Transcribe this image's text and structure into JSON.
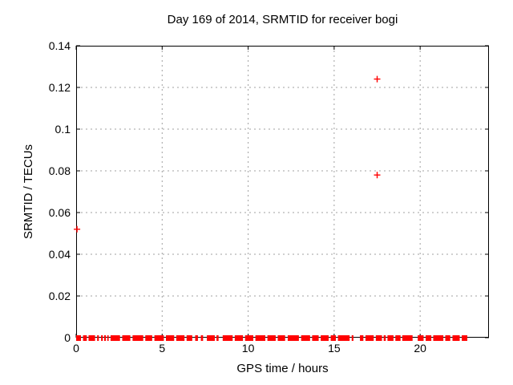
{
  "chart_data": {
    "type": "scatter",
    "title": "Day 169 of 2014, SRMTID for receiver bogi",
    "xlabel": "GPS time / hours",
    "ylabel": "SRMTID / TECUs",
    "xlim": [
      0,
      24
    ],
    "ylim": [
      0,
      0.14
    ],
    "xticks": {
      "values": [
        0,
        5,
        10,
        15,
        20
      ],
      "labels": [
        "0",
        "5",
        "10",
        "15",
        "20"
      ]
    },
    "yticks": {
      "values": [
        0,
        0.02,
        0.04,
        0.06,
        0.08,
        0.1,
        0.12,
        0.14
      ],
      "labels": [
        "0",
        "0.02",
        "0.04",
        "0.06",
        "0.08",
        "0.1",
        "0.12",
        "0.14"
      ]
    },
    "grid": {
      "shown": true,
      "style": "dashed",
      "color": "#a0a0a0"
    },
    "legend": "none",
    "background": "#ffffff",
    "axes_color": "#000000",
    "series": [
      {
        "marker": "plus",
        "color": "#ff0000",
        "outlier_points": [
          {
            "x": 0.05,
            "y": 0.052
          },
          {
            "x": 17.5,
            "y": 0.124
          },
          {
            "x": 17.5,
            "y": 0.078
          }
        ],
        "baseline_value": 0,
        "baseline_segments_hours": [
          [
            0.0,
            0.28
          ],
          [
            0.4,
            0.62
          ],
          [
            0.72,
            1.1
          ],
          [
            1.22,
            1.32
          ],
          [
            1.45,
            1.55
          ],
          [
            1.63,
            1.73
          ],
          [
            1.81,
            1.89
          ],
          [
            2.0,
            2.55
          ],
          [
            2.68,
            3.15
          ],
          [
            3.28,
            3.9
          ],
          [
            4.02,
            4.42
          ],
          [
            4.55,
            5.1
          ],
          [
            5.22,
            5.7
          ],
          [
            5.82,
            6.3
          ],
          [
            6.42,
            6.75
          ],
          [
            6.92,
            7.08
          ],
          [
            7.25,
            7.38
          ],
          [
            7.6,
            8.06
          ],
          [
            8.16,
            8.28
          ],
          [
            8.52,
            9.1
          ],
          [
            9.22,
            9.7
          ],
          [
            9.82,
            10.3
          ],
          [
            10.42,
            11.0
          ],
          [
            11.12,
            11.6
          ],
          [
            11.72,
            12.15
          ],
          [
            12.3,
            12.95
          ],
          [
            13.08,
            13.6
          ],
          [
            13.72,
            14.1
          ],
          [
            14.22,
            14.68
          ],
          [
            14.8,
            15.1
          ],
          [
            15.22,
            15.9
          ],
          [
            16.02,
            16.12
          ],
          [
            16.5,
            16.7
          ],
          [
            16.82,
            17.3
          ],
          [
            17.42,
            17.78
          ],
          [
            17.88,
            18.0
          ],
          [
            18.1,
            18.45
          ],
          [
            18.56,
            18.86
          ],
          [
            18.96,
            19.56
          ],
          [
            19.86,
            20.2
          ],
          [
            20.32,
            20.65
          ],
          [
            20.76,
            21.35
          ],
          [
            21.46,
            21.75
          ],
          [
            21.88,
            22.3
          ],
          [
            22.42,
            22.74
          ]
        ]
      }
    ]
  }
}
